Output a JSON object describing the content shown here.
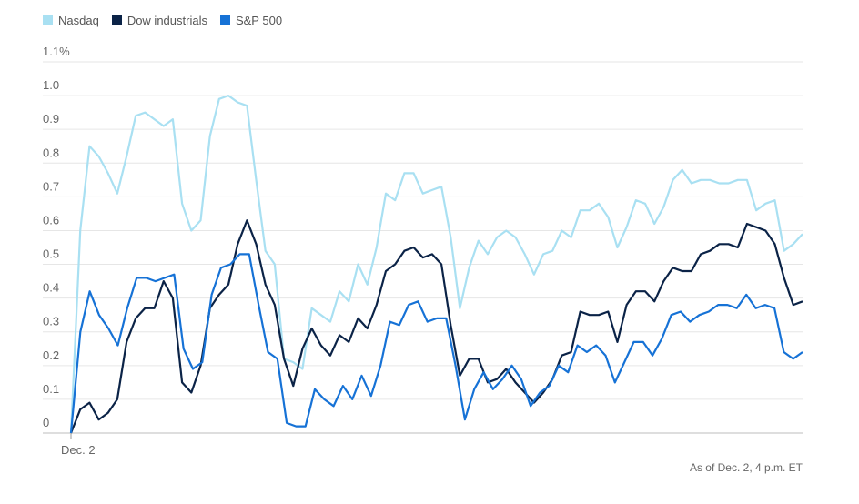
{
  "colors": {
    "nasdaq": "#a9e0f2",
    "dow": "#0b2347",
    "sp500": "#1672d6"
  },
  "legend": [
    {
      "label": "Nasdaq",
      "color": "#a9e0f2"
    },
    {
      "label": "Dow industrials",
      "color": "#0b2347"
    },
    {
      "label": "S&P 500",
      "color": "#1672d6"
    }
  ],
  "note": "As of Dec. 2, 4 p.m. ET",
  "chart_data": {
    "type": "line",
    "title": "",
    "xlabel": "",
    "ylabel": "",
    "x_ticks": [
      "Dec. 2"
    ],
    "y_ticks": [
      "0",
      "0.1",
      "0.2",
      "0.3",
      "0.4",
      "0.5",
      "0.6",
      "0.7",
      "0.8",
      "0.9",
      "1.0",
      "1.1%"
    ],
    "ylim": [
      0,
      1.1
    ],
    "grid": true,
    "legend_position": "top-left",
    "series": [
      {
        "name": "Nasdaq",
        "color": "#a9e0f2",
        "values": [
          0.0,
          0.6,
          0.85,
          0.82,
          0.77,
          0.71,
          0.82,
          0.94,
          0.95,
          0.93,
          0.91,
          0.93,
          0.68,
          0.6,
          0.63,
          0.88,
          0.99,
          1.0,
          0.98,
          0.97,
          0.75,
          0.54,
          0.5,
          0.22,
          0.21,
          0.19,
          0.37,
          0.35,
          0.33,
          0.42,
          0.39,
          0.5,
          0.44,
          0.55,
          0.71,
          0.69,
          0.77,
          0.77,
          0.71,
          0.72,
          0.73,
          0.58,
          0.37,
          0.49,
          0.57,
          0.53,
          0.58,
          0.6,
          0.58,
          0.53,
          0.47,
          0.53,
          0.54,
          0.6,
          0.58,
          0.66,
          0.66,
          0.68,
          0.64,
          0.55,
          0.61,
          0.69,
          0.68,
          0.62,
          0.67,
          0.75,
          0.78,
          0.74,
          0.75,
          0.75,
          0.74,
          0.74,
          0.75,
          0.75,
          0.66,
          0.68,
          0.69,
          0.54,
          0.56,
          0.59
        ]
      },
      {
        "name": "Dow industrials",
        "color": "#0b2347",
        "values": [
          0.0,
          0.07,
          0.09,
          0.04,
          0.06,
          0.1,
          0.27,
          0.34,
          0.37,
          0.37,
          0.45,
          0.4,
          0.15,
          0.12,
          0.2,
          0.37,
          0.41,
          0.44,
          0.56,
          0.63,
          0.56,
          0.44,
          0.38,
          0.22,
          0.14,
          0.25,
          0.31,
          0.26,
          0.23,
          0.29,
          0.27,
          0.34,
          0.31,
          0.38,
          0.48,
          0.5,
          0.54,
          0.55,
          0.52,
          0.53,
          0.5,
          0.32,
          0.17,
          0.22,
          0.22,
          0.15,
          0.16,
          0.19,
          0.15,
          0.12,
          0.09,
          0.12,
          0.16,
          0.23,
          0.24,
          0.36,
          0.35,
          0.35,
          0.36,
          0.27,
          0.38,
          0.42,
          0.42,
          0.39,
          0.45,
          0.49,
          0.48,
          0.48,
          0.53,
          0.54,
          0.56,
          0.56,
          0.55,
          0.62,
          0.61,
          0.6,
          0.56,
          0.46,
          0.38,
          0.39
        ]
      },
      {
        "name": "S&P 500",
        "color": "#1672d6",
        "values": [
          0.0,
          0.3,
          0.42,
          0.35,
          0.31,
          0.26,
          0.37,
          0.46,
          0.46,
          0.45,
          0.46,
          0.47,
          0.25,
          0.19,
          0.21,
          0.41,
          0.49,
          0.5,
          0.53,
          0.53,
          0.38,
          0.24,
          0.22,
          0.03,
          0.02,
          0.02,
          0.13,
          0.1,
          0.08,
          0.14,
          0.1,
          0.17,
          0.11,
          0.2,
          0.33,
          0.32,
          0.38,
          0.39,
          0.33,
          0.34,
          0.34,
          0.2,
          0.04,
          0.13,
          0.18,
          0.13,
          0.16,
          0.2,
          0.16,
          0.08,
          0.12,
          0.14,
          0.2,
          0.18,
          0.26,
          0.24,
          0.26,
          0.23,
          0.15,
          0.21,
          0.27,
          0.27,
          0.23,
          0.28,
          0.35,
          0.36,
          0.33,
          0.35,
          0.36,
          0.38,
          0.38,
          0.37,
          0.41,
          0.37,
          0.38,
          0.37,
          0.24,
          0.22,
          0.24
        ]
      }
    ]
  }
}
